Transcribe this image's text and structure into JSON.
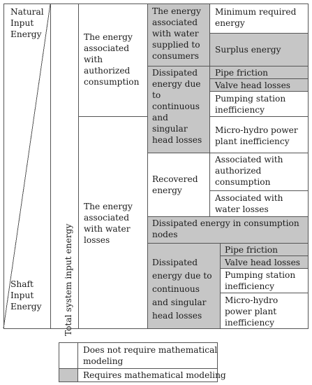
{
  "diagram": {
    "corner_top_label": "Natural\nInput\nEnergy",
    "corner_bottom_label": "Shaft\nInput\nEnergy",
    "total_label": "Total system input energy",
    "authorized": "The energy\nassociated\nwith\nauthorized\nconsumption",
    "water_losses": "The energy\nassociated\nwith water\nlosses",
    "supplied": "The energy\nassociated\nwith water\nsupplied to\nconsumers",
    "min_required": "Minimum required\nenergy",
    "surplus": "Surplus energy",
    "dissipated_1": "Dissipated\nenergy due\nto\ncontinuous\nand\nsingular\nhead losses",
    "pipe_friction_1": "Pipe friction",
    "valve_losses_1": "Valve head losses",
    "pumping_1": "Pumping station\ninefficiency",
    "microhydro_1": "Micro-hydro power\nplant inefficiency",
    "recovered": "Recovered\nenergy",
    "assoc_authorized": "Associated with\nauthorized\nconsumption",
    "assoc_losses": "Associated with\nwater losses",
    "dissipated_nodes": "Dissipated energy in consumption\nnodes",
    "dissipated_2": "Dissipated\nenergy due to\ncontinuous\nand singular\nhead losses",
    "pipe_friction_2": "Pipe friction",
    "valve_losses_2": "Valve head losses",
    "pumping_2": "Pumping station\ninefficiency",
    "microhydro_2": "Micro-hydro\npower plant\ninefficiency"
  },
  "legend": {
    "no_modeling": "Does not require mathematical\nmodeling",
    "modeling": "Requires mathematical modeling"
  },
  "colors": {
    "shaded": "#c6c6c6",
    "border": "#555555"
  }
}
